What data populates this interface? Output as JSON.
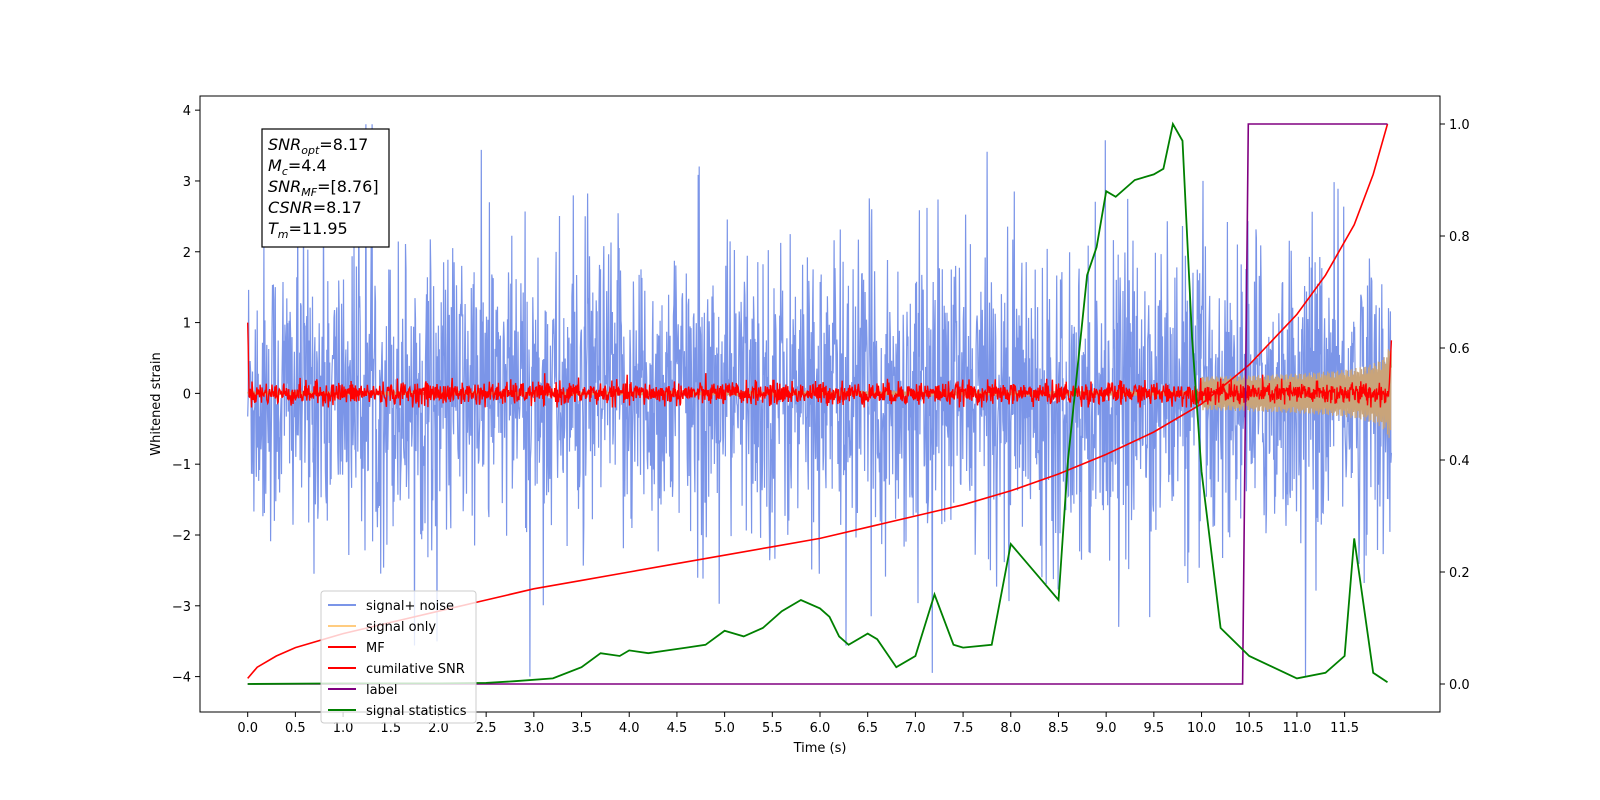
{
  "chart_data": {
    "type": "line",
    "xlabel": "Time (s)",
    "ylabel": "Whitened strain",
    "xlim": [
      -0.5,
      12.5
    ],
    "ylim_left": [
      -4.5,
      4.2
    ],
    "ylim_right": [
      -0.05,
      1.05
    ],
    "x_ticks": [
      "0.0",
      "0.5",
      "1.0",
      "1.5",
      "2.0",
      "2.5",
      "3.0",
      "3.5",
      "4.0",
      "4.5",
      "5.0",
      "5.5",
      "6.0",
      "6.5",
      "7.0",
      "7.5",
      "8.0",
      "8.5",
      "9.0",
      "9.5",
      "10.0",
      "10.5",
      "11.0",
      "11.5"
    ],
    "y_left_ticks": [
      "4",
      "3",
      "2",
      "1",
      "0",
      "−1",
      "−2",
      "−3",
      "−4"
    ],
    "y_right_ticks": [
      "1.0",
      "0.8",
      "0.6",
      "0.4",
      "0.2",
      "0.0"
    ],
    "annotation": [
      {
        "base": "SNR",
        "sub": "opt",
        "value": "=8.17"
      },
      {
        "base": "M",
        "sub": "c",
        "value": "=4.4"
      },
      {
        "base": "SNR",
        "sub": "MF",
        "value": "=[8.76]"
      },
      {
        "base": "CSNR",
        "sub": "",
        "value": "=8.17"
      },
      {
        "base": "T",
        "sub": "m",
        "value": "=11.95"
      }
    ],
    "legend": {
      "placement": "lower-left",
      "entries": [
        {
          "label": "signal+ noise",
          "color": "#7b95e8"
        },
        {
          "label": "signal only",
          "color": "#ffcc80"
        },
        {
          "label": "MF",
          "color": "#ff0000"
        },
        {
          "label": "cumilative SNR",
          "color": "#ff0000"
        },
        {
          "label": "label",
          "color": "#800080"
        },
        {
          "label": "signal statistics",
          "color": "#008000"
        }
      ]
    },
    "series": [
      {
        "name": "signal+ noise",
        "axis": "left",
        "color": "#7b95e8",
        "kind": "noise",
        "t_range": [
          0.0,
          11.99
        ],
        "amplitude_range": [
          -4.0,
          3.8
        ],
        "note_visible": "dense whitened noise band"
      },
      {
        "name": "signal only",
        "axis": "left",
        "color": "#ffcc80",
        "kind": "chirp",
        "t_range": [
          0.0,
          11.99
        ],
        "end_amplitude": 0.75
      },
      {
        "name": "MF",
        "axis": "left",
        "color": "#ff0000",
        "kind": "noise",
        "t_range": [
          0.0,
          11.99
        ],
        "amplitude_range": [
          -0.2,
          0.4
        ],
        "spike_start": 1.0,
        "spike_end": 0.75
      },
      {
        "name": "cumilative SNR",
        "axis": "right",
        "color": "#ff0000",
        "x": [
          0.0,
          0.1,
          0.3,
          0.5,
          1.0,
          1.5,
          2.0,
          2.5,
          3.0,
          3.5,
          4.0,
          4.5,
          5.0,
          5.5,
          6.0,
          6.5,
          7.0,
          7.5,
          8.0,
          8.5,
          9.0,
          9.5,
          10.0,
          10.5,
          11.0,
          11.3,
          11.6,
          11.8,
          11.95
        ],
        "y": [
          0.01,
          0.03,
          0.05,
          0.065,
          0.09,
          0.11,
          0.13,
          0.15,
          0.17,
          0.185,
          0.2,
          0.215,
          0.23,
          0.245,
          0.26,
          0.28,
          0.3,
          0.32,
          0.345,
          0.375,
          0.41,
          0.45,
          0.5,
          0.57,
          0.66,
          0.73,
          0.82,
          0.91,
          1.0
        ]
      },
      {
        "name": "label",
        "axis": "right",
        "color": "#800080",
        "x": [
          0.0,
          10.43,
          10.49,
          11.95
        ],
        "y": [
          0.0,
          0.0,
          1.0,
          1.0
        ]
      },
      {
        "name": "signal statistics",
        "axis": "right",
        "color": "#008000",
        "x": [
          0.0,
          1.0,
          2.0,
          2.5,
          2.8,
          3.2,
          3.5,
          3.7,
          3.9,
          4.0,
          4.2,
          4.4,
          4.6,
          4.8,
          5.0,
          5.2,
          5.4,
          5.6,
          5.8,
          6.0,
          6.1,
          6.2,
          6.3,
          6.5,
          6.6,
          6.8,
          7.0,
          7.2,
          7.4,
          7.5,
          7.8,
          8.0,
          8.1,
          8.3,
          8.5,
          8.6,
          8.8,
          8.9,
          9.0,
          9.1,
          9.3,
          9.5,
          9.6,
          9.7,
          9.8,
          9.9,
          10.0,
          10.2,
          10.5,
          11.0,
          11.3,
          11.5,
          11.6,
          11.8,
          11.95
        ],
        "y": [
          0.0,
          0.001,
          0.001,
          0.002,
          0.005,
          0.01,
          0.03,
          0.055,
          0.05,
          0.06,
          0.055,
          0.06,
          0.065,
          0.07,
          0.095,
          0.085,
          0.1,
          0.13,
          0.15,
          0.135,
          0.12,
          0.085,
          0.07,
          0.09,
          0.08,
          0.03,
          0.05,
          0.16,
          0.07,
          0.065,
          0.07,
          0.25,
          0.23,
          0.19,
          0.15,
          0.4,
          0.73,
          0.78,
          0.88,
          0.87,
          0.9,
          0.91,
          0.92,
          1.0,
          0.97,
          0.62,
          0.38,
          0.1,
          0.05,
          0.01,
          0.02,
          0.05,
          0.26,
          0.02,
          0.003
        ]
      }
    ]
  }
}
